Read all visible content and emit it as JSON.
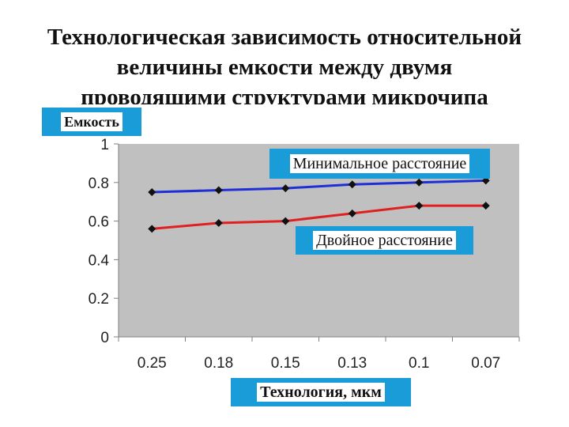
{
  "slide": {
    "title": "Технологическая зависимость относительной\nвеличины емкости между двумя\nпроводящими структурами микрочипа"
  },
  "chart_data": {
    "type": "line",
    "title": "Технологическая зависимость относительной величины емкости между двумя проводящими структурами микрочипа",
    "xlabel": "Технология, мкм",
    "ylabel": "Емкость",
    "categories": [
      "0.25",
      "0.18",
      "0.15",
      "0.13",
      "0.1",
      "0.07"
    ],
    "yticks": [
      "0",
      "0.2",
      "0.4",
      "0.6",
      "0.8",
      "1"
    ],
    "ylim": [
      0,
      1
    ],
    "grid": false,
    "series": [
      {
        "name": "Минимальное расстояние",
        "values": [
          0.75,
          0.76,
          0.77,
          0.79,
          0.8,
          0.81
        ],
        "color": "#1f2fd6"
      },
      {
        "name": "Двойное расстояние",
        "values": [
          0.56,
          0.59,
          0.6,
          0.64,
          0.68,
          0.68
        ],
        "color": "#e02020"
      }
    ],
    "plot_background": "#c0c0c0",
    "label_box_color": "#1a9cd8"
  }
}
